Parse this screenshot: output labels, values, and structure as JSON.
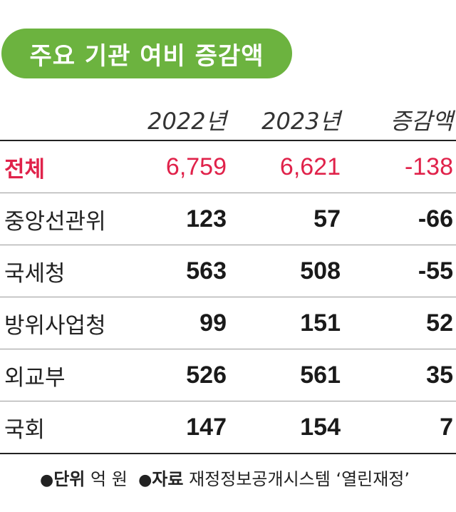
{
  "chart_data": {
    "type": "table",
    "title": "주요 기관 여비 증감액",
    "columns": [
      "2022년",
      "2023년",
      "증감액"
    ],
    "rows": [
      {
        "name": "전체",
        "values": [
          "6,759",
          "6,621",
          "-138"
        ]
      },
      {
        "name": "중앙선관위",
        "values": [
          "123",
          "57",
          "-66"
        ]
      },
      {
        "name": "국세청",
        "values": [
          "563",
          "508",
          "-55"
        ]
      },
      {
        "name": "방위사업청",
        "values": [
          "99",
          "151",
          "52"
        ]
      },
      {
        "name": "외교부",
        "values": [
          "526",
          "561",
          "35"
        ]
      },
      {
        "name": "국회",
        "values": [
          "147",
          "154",
          "7"
        ]
      }
    ]
  },
  "footer": {
    "unit_label": "단위",
    "unit_value": "억 원",
    "source_label": "자료",
    "source_value": "재정정보공개시스템 ‘열린재정’"
  },
  "colors": {
    "title_bg": "#6cb33f",
    "highlight": "#e0224a"
  }
}
